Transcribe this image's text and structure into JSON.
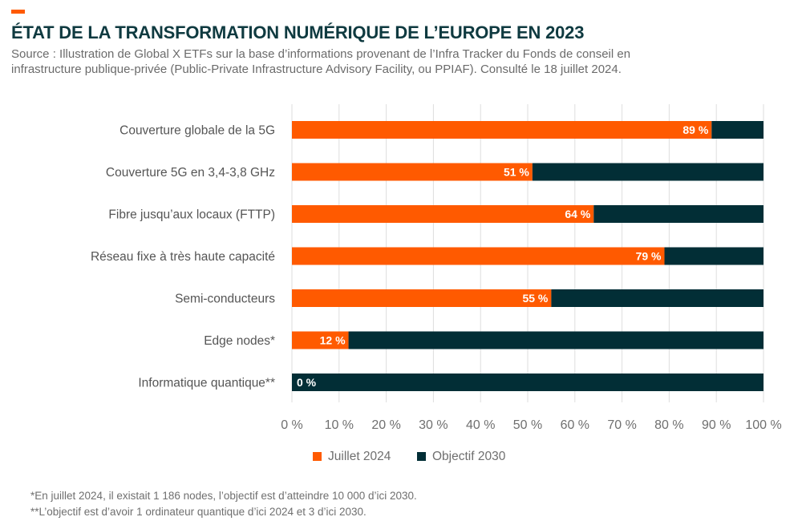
{
  "header": {
    "title": "ÉTAT DE LA TRANSFORMATION NUMÉRIQUE DE L’EUROPE EN 2023",
    "subtitle_line1": "Source : Illustration de Global X ETFs sur la base d’informations provenant de l’Infra Tracker du Fonds de conseil en",
    "subtitle_line2": "infrastructure publique-privée (Public-Private Infrastructure Advisory Facility, ou PPIAF). Consulté le 18 juillet 2024."
  },
  "colors": {
    "accent": "#ff5a00",
    "juillet_2024": "#ff5a00",
    "objectif_2030": "#022e36",
    "title": "#0f3a40",
    "text_gray": "#6b6b6b",
    "grid": "#dedede"
  },
  "chart_data": {
    "type": "bar",
    "orientation": "horizontal",
    "stacked": true,
    "title": "ÉTAT DE LA TRANSFORMATION NUMÉRIQUE DE L’EUROPE EN 2023",
    "categories": [
      "Couverture globale de la 5G",
      "Couverture 5G en 3,4-3,8 GHz",
      "Fibre jusqu’aux locaux (FTTP)",
      "Réseau fixe à très haute capacité",
      "Semi-conducteurs",
      "Edge nodes*",
      "Informatique quantique**"
    ],
    "series": [
      {
        "name": "Juillet 2024",
        "values": [
          89,
          51,
          64,
          79,
          55,
          12,
          0
        ]
      },
      {
        "name": "Objectif 2030",
        "values": [
          11,
          49,
          36,
          21,
          45,
          88,
          100
        ]
      }
    ],
    "data_labels": [
      "89 %",
      "51 %",
      "64 %",
      "79 %",
      "55 %",
      "12 %",
      "0 %"
    ],
    "xlim": [
      0,
      100
    ],
    "x_ticks": [
      0,
      10,
      20,
      30,
      40,
      50,
      60,
      70,
      80,
      90,
      100
    ],
    "x_tick_labels": [
      "0 %",
      "10 %",
      "20 %",
      "30 %",
      "40 %",
      "50 %",
      "60 %",
      "70 %",
      "80 %",
      "90 %",
      "100 %"
    ],
    "xlabel": "",
    "ylabel": "",
    "grid": true,
    "legend": [
      "Juillet 2024",
      "Objectif 2030"
    ],
    "legend_position": "bottom"
  },
  "footnotes": [
    "*En juillet 2024, il existait 1 186 nodes, l’objectif est d’atteindre 10 000 d’ici 2030.",
    "**L’objectif est d’avoir 1 ordinateur quantique d’ici 2024 et 3 d’ici 2030."
  ]
}
